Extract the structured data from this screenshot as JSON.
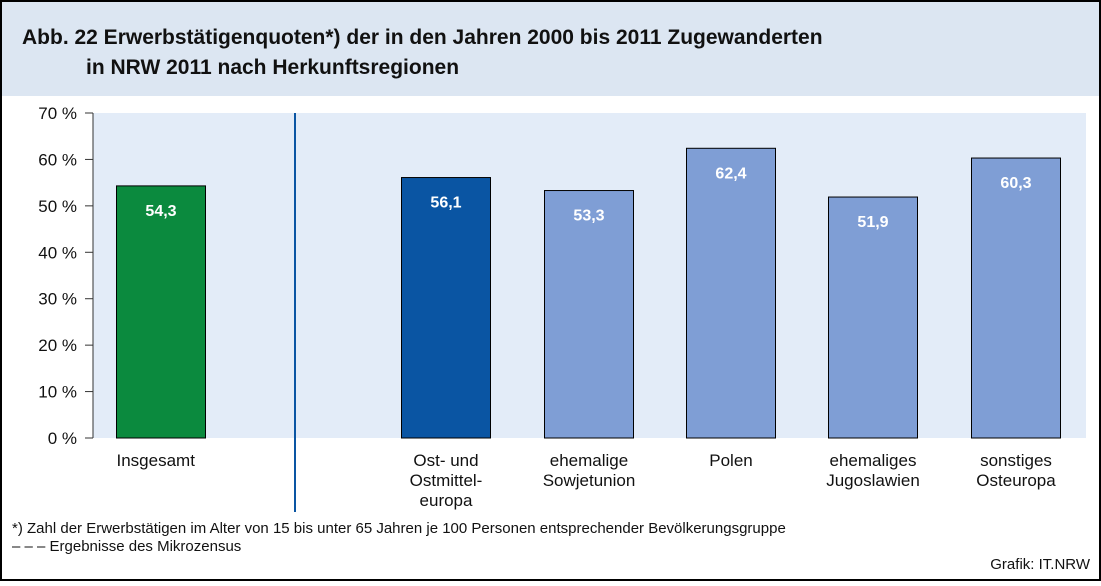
{
  "chart_data": {
    "type": "bar",
    "title": "Abb. 22  Erwerbstätigenquoten*) der in den Jahren 2000 bis 2011 Zugewanderten",
    "title_line2": "in NRW 2011 nach Herkunftsregionen",
    "categories": [
      "Insgesamt",
      "Ost- und\nOstmittel-\neuropa",
      "ehemalige\nSowjetunion",
      "Polen",
      "ehemaliges\nJugoslawien",
      "sonstiges\nOsteuropa"
    ],
    "values": [
      54.3,
      56.1,
      53.3,
      62.4,
      51.9,
      60.3
    ],
    "value_labels": [
      "54,3",
      "56,1",
      "53,3",
      "62,4",
      "51,9",
      "60,3"
    ],
    "colors": [
      "#0b8a3e",
      "#0a55a3",
      "#7f9ed5",
      "#7f9ed5",
      "#7f9ed5",
      "#7f9ed5"
    ],
    "ylim": [
      0,
      70
    ],
    "yticks": [
      {
        "value": 0,
        "label": "0 %"
      },
      {
        "value": 10,
        "label": "10 %"
      },
      {
        "value": 20,
        "label": "20 %"
      },
      {
        "value": 30,
        "label": "30 %"
      },
      {
        "value": 40,
        "label": "40 %"
      },
      {
        "value": 50,
        "label": "50 %"
      },
      {
        "value": 60,
        "label": "60 %"
      },
      {
        "value": 70,
        "label": "70 %"
      }
    ],
    "footnote": "*) Zahl der Erwerbstätigen im Alter von 15 bis unter 65 Jahren je 100 Personen entsprechender Bevölkerungsgruppe",
    "note": "– – – Ergebnisse des Mikrozensus",
    "source": "Grafik: IT.NRW"
  }
}
